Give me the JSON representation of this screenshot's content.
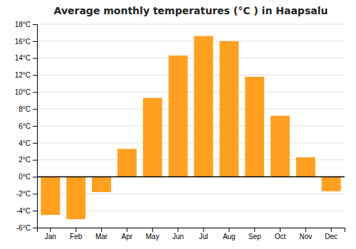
{
  "chart_data": {
    "type": "bar",
    "title": "Average monthly temperatures (°C ) in Haapsalu",
    "categories": [
      "Jan",
      "Feb",
      "Mar",
      "Apr",
      "May",
      "Jun",
      "Jul",
      "Aug",
      "Sep",
      "Oct",
      "Nov",
      "Dec"
    ],
    "values": [
      -4.5,
      -5.0,
      -1.8,
      3.3,
      9.3,
      14.3,
      16.6,
      16.0,
      11.8,
      7.2,
      2.3,
      -1.7
    ],
    "color": "#FFA020",
    "ylim": [
      -6,
      18
    ],
    "yticks": [
      {
        "value": -6,
        "label": "-6°C"
      },
      {
        "value": -4,
        "label": "-4°C"
      },
      {
        "value": -2,
        "label": "-2°C"
      },
      {
        "value": 0,
        "label": "0°C"
      },
      {
        "value": 2,
        "label": "2°C"
      },
      {
        "value": 4,
        "label": "4°C"
      },
      {
        "value": 6,
        "label": "6°C"
      },
      {
        "value": 8,
        "label": "8°C"
      },
      {
        "value": 10,
        "label": "10°C"
      },
      {
        "value": 12,
        "label": "12°C"
      },
      {
        "value": 14,
        "label": "14°C"
      },
      {
        "value": 16,
        "label": "16°C"
      },
      {
        "value": 18,
        "label": "18°C"
      }
    ],
    "grid": true
  }
}
